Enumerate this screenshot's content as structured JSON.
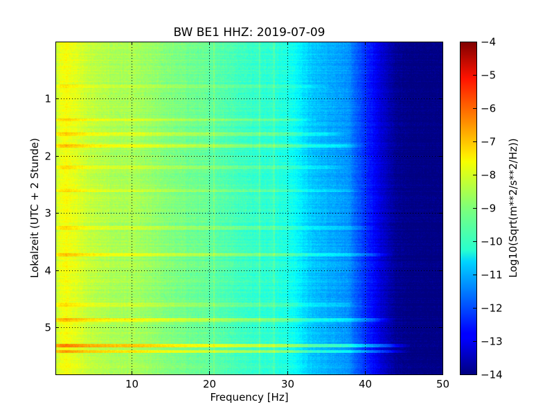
{
  "chart_data": {
    "type": "heatmap",
    "title": "BW BE1 HHZ: 2019-07-09",
    "xlabel": "Frequency [Hz]",
    "ylabel": "Lokalzeit (UTC + 2 Stunde)",
    "xlim": [
      0.2,
      50
    ],
    "ylim": [
      0,
      5.82
    ],
    "y_inverted": true,
    "x_ticks": [
      10,
      20,
      30,
      40,
      50
    ],
    "x_tick_labels": [
      "10",
      "20",
      "30",
      "40",
      "50"
    ],
    "y_ticks": [
      1,
      2,
      3,
      4,
      5
    ],
    "y_tick_labels": [
      "1",
      "2",
      "3",
      "4",
      "5"
    ],
    "grid": true,
    "colormap": "jet",
    "colorbar": {
      "label": "Log10(Sqrt(m**2/s**2/Hz))",
      "range": [
        -14,
        -4
      ],
      "ticks": [
        -4,
        -5,
        -6,
        -7,
        -8,
        -9,
        -10,
        -11,
        -12,
        -13,
        -14
      ],
      "tick_labels": [
        "−4",
        "−5",
        "−6",
        "−7",
        "−8",
        "−9",
        "−10",
        "−11",
        "−12",
        "−13",
        "−14"
      ]
    },
    "spectrum_profile": {
      "frequency_hz": [
        0.2,
        0.8,
        1.5,
        3,
        5,
        8,
        10,
        15,
        20,
        25,
        28,
        30,
        31,
        32,
        33,
        35,
        37,
        38,
        39,
        40,
        41,
        42,
        43,
        44,
        46,
        50
      ],
      "level": [
        -8.4,
        -7.9,
        -7.8,
        -8.1,
        -8.4,
        -8.6,
        -8.6,
        -9.0,
        -9.3,
        -9.7,
        -9.8,
        -10.0,
        -10.2,
        -10.5,
        -10.8,
        -11.0,
        -11.2,
        -11.4,
        -11.9,
        -12.3,
        -12.7,
        -13.1,
        -13.5,
        -13.8,
        -14.0,
        -14.0
      ]
    },
    "bright_bands": [
      {
        "time_h": 5.32,
        "level_offset": 1.3,
        "fmax_hz": 46
      },
      {
        "time_h": 5.42,
        "level_offset": 1.1,
        "fmax_hz": 46
      },
      {
        "time_h": 4.87,
        "level_offset": 0.9,
        "fmax_hz": 44
      },
      {
        "time_h": 3.73,
        "level_offset": 0.7,
        "fmax_hz": 44
      },
      {
        "time_h": 1.82,
        "level_offset": 0.7,
        "fmax_hz": 40
      },
      {
        "time_h": 1.62,
        "level_offset": 0.6,
        "fmax_hz": 38
      },
      {
        "time_h": 1.37,
        "level_offset": 0.6,
        "fmax_hz": 34
      },
      {
        "time_h": 3.25,
        "level_offset": 0.5,
        "fmax_hz": 42
      },
      {
        "time_h": 2.2,
        "level_offset": 0.4,
        "fmax_hz": 38
      },
      {
        "time_h": 4.6,
        "level_offset": 0.5,
        "fmax_hz": 40
      },
      {
        "time_h": 0.78,
        "level_offset": 0.4,
        "fmax_hz": 36
      },
      {
        "time_h": 2.6,
        "level_offset": 0.4,
        "fmax_hz": 40
      }
    ],
    "bright_lines_hz": [
      26.4,
      28.2,
      20.5
    ]
  }
}
